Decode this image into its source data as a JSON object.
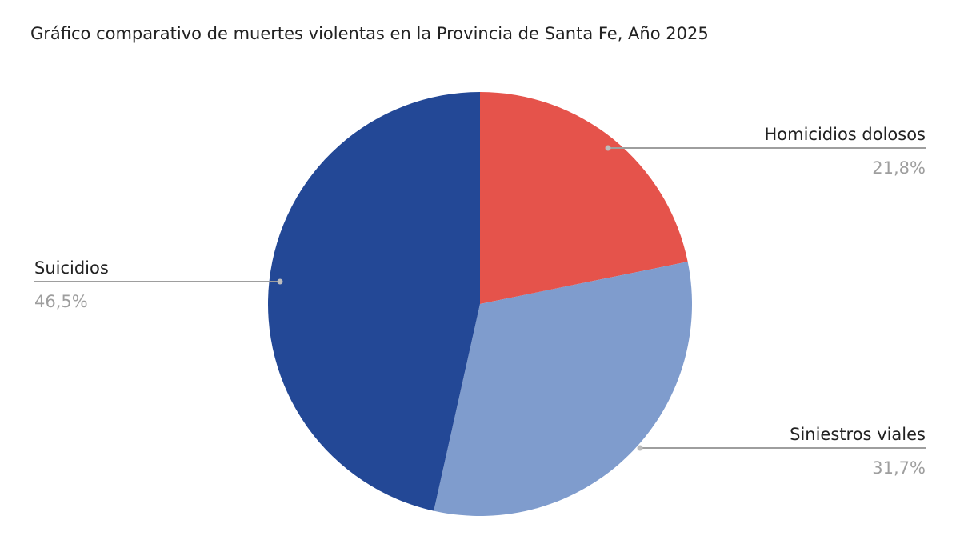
{
  "chart_data": {
    "type": "pie",
    "title": "Gráfico comparativo de muertes violentas en la Provincia de Santa Fe, Año 2025",
    "slices": [
      {
        "label": "Homicidios dolosos",
        "value": 21.8,
        "value_label": "21,8%",
        "color": "#E5534B",
        "label_side": "right"
      },
      {
        "label": "Siniestros viales",
        "value": 31.7,
        "value_label": "31,7%",
        "color": "#7F9CCD",
        "label_side": "right"
      },
      {
        "label": "Suicidios",
        "value": 46.5,
        "value_label": "46,5%",
        "color": "#234896",
        "label_side": "left"
      }
    ],
    "start_angle": "top",
    "direction": "clockwise",
    "legend": "none"
  }
}
